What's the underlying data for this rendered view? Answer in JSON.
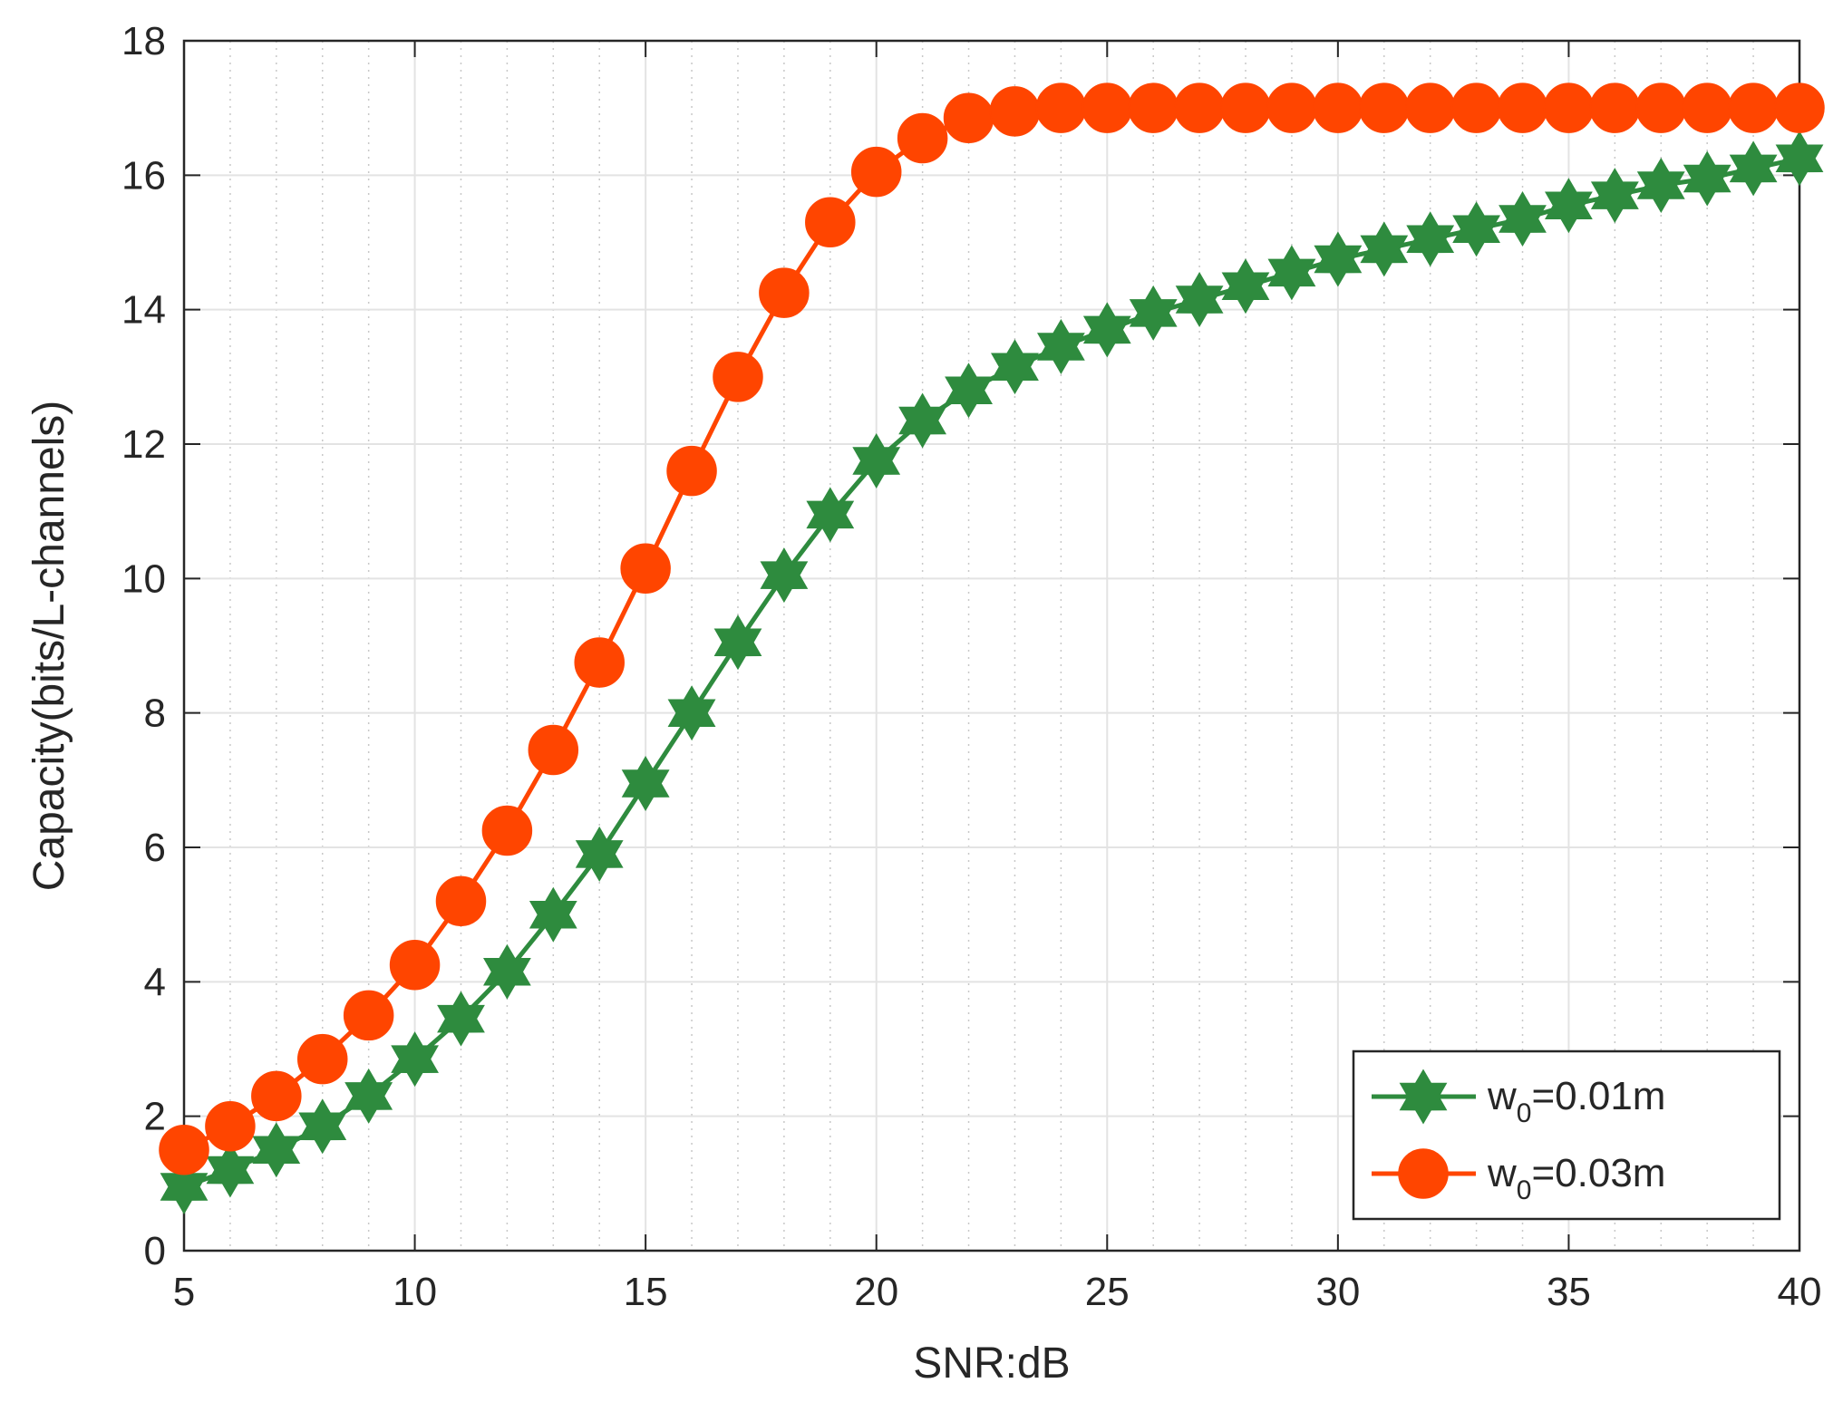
{
  "chart_data": {
    "type": "line",
    "title": "",
    "xlabel": "SNR:dB",
    "ylabel": "Capacity(bits/L-channels)",
    "xlim": [
      5,
      40
    ],
    "ylim": [
      0,
      18
    ],
    "xticks": [
      5,
      10,
      15,
      20,
      25,
      30,
      35,
      40
    ],
    "yticks": [
      0,
      2,
      4,
      6,
      8,
      10,
      12,
      14,
      16,
      18
    ],
    "grid": true,
    "legend_position": "bottom-right",
    "x": [
      5,
      6,
      7,
      8,
      9,
      10,
      11,
      12,
      13,
      14,
      15,
      16,
      17,
      18,
      19,
      20,
      21,
      22,
      23,
      24,
      25,
      26,
      27,
      28,
      29,
      30,
      31,
      32,
      33,
      34,
      35,
      36,
      37,
      38,
      39,
      40
    ],
    "series": [
      {
        "name": "w0=0.01m",
        "legend_main": "w",
        "legend_sub": "0",
        "legend_rest": "=0.01m",
        "color": "#2e8b3e",
        "marker": "hexagram",
        "values": [
          0.95,
          1.2,
          1.5,
          1.85,
          2.3,
          2.85,
          3.45,
          4.15,
          5.0,
          5.9,
          6.95,
          8.0,
          9.05,
          10.05,
          10.95,
          11.75,
          12.35,
          12.8,
          13.15,
          13.45,
          13.7,
          13.95,
          14.15,
          14.35,
          14.55,
          14.75,
          14.9,
          15.05,
          15.2,
          15.35,
          15.55,
          15.7,
          15.85,
          15.95,
          16.1,
          16.25
        ]
      },
      {
        "name": "w0=0.03m",
        "legend_main": "w",
        "legend_sub": "0",
        "legend_rest": "=0.03m",
        "color": "#ff4500",
        "marker": "circle",
        "values": [
          1.5,
          1.85,
          2.3,
          2.85,
          3.5,
          4.25,
          5.2,
          6.25,
          7.45,
          8.75,
          10.15,
          11.6,
          13.0,
          14.25,
          15.3,
          16.05,
          16.55,
          16.85,
          16.95,
          17.0,
          17.0,
          17.0,
          17.0,
          17.0,
          17.0,
          17.0,
          17.0,
          17.0,
          17.0,
          17.0,
          17.0,
          17.0,
          17.0,
          17.0,
          17.0,
          17.0
        ]
      }
    ]
  }
}
